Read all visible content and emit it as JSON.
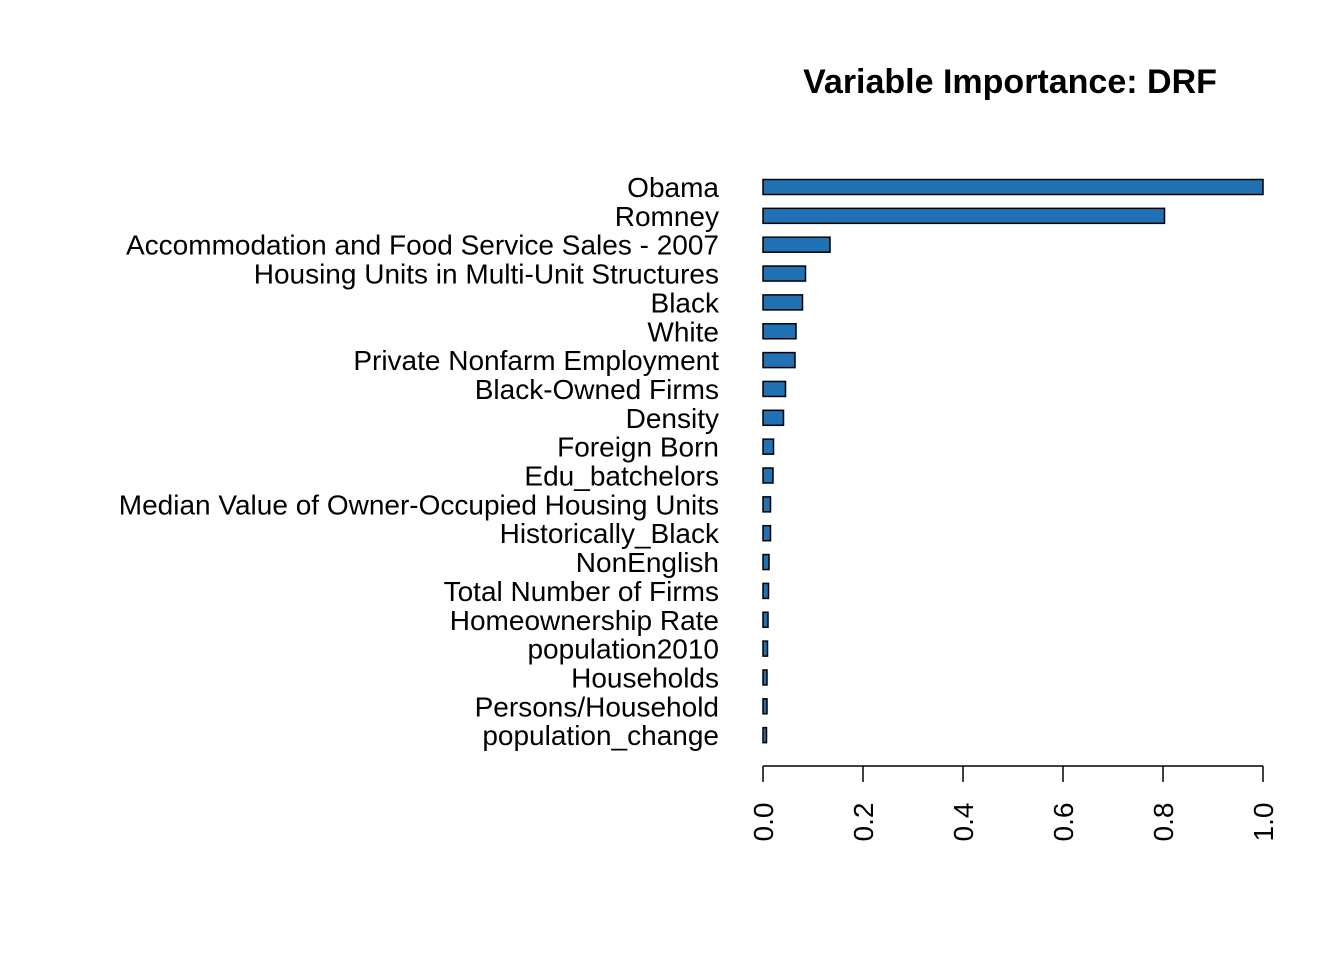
{
  "chart_data": {
    "type": "bar",
    "orientation": "horizontal",
    "title": "Variable Importance: DRF",
    "xlabel": "",
    "ylabel": "",
    "xlim": [
      0,
      1
    ],
    "x_ticks": [
      "0.0",
      "0.2",
      "0.4",
      "0.6",
      "0.8",
      "1.0"
    ],
    "x_tick_values": [
      0,
      0.2,
      0.4,
      0.6,
      0.8,
      1.0
    ],
    "bar_color": "#2171B5",
    "grid": false,
    "categories": [
      "Obama",
      "Romney",
      "Accommodation and Food Service Sales - 2007",
      "Housing Units in Multi-Unit Structures",
      "Black",
      "White",
      "Private Nonfarm Employment",
      "Black-Owned Firms",
      "Density",
      "Foreign Born",
      "Edu_batchelors",
      "Median Value of Owner-Occupied Housing Units",
      "Historically_Black",
      "NonEnglish",
      "Total Number of Firms",
      "Homeownership Rate",
      "population2010",
      "Households",
      "Persons/Household",
      "population_change"
    ],
    "values": [
      1.0,
      0.803,
      0.134,
      0.085,
      0.079,
      0.066,
      0.064,
      0.045,
      0.041,
      0.021,
      0.02,
      0.015,
      0.015,
      0.012,
      0.011,
      0.01,
      0.009,
      0.008,
      0.008,
      0.007
    ]
  }
}
